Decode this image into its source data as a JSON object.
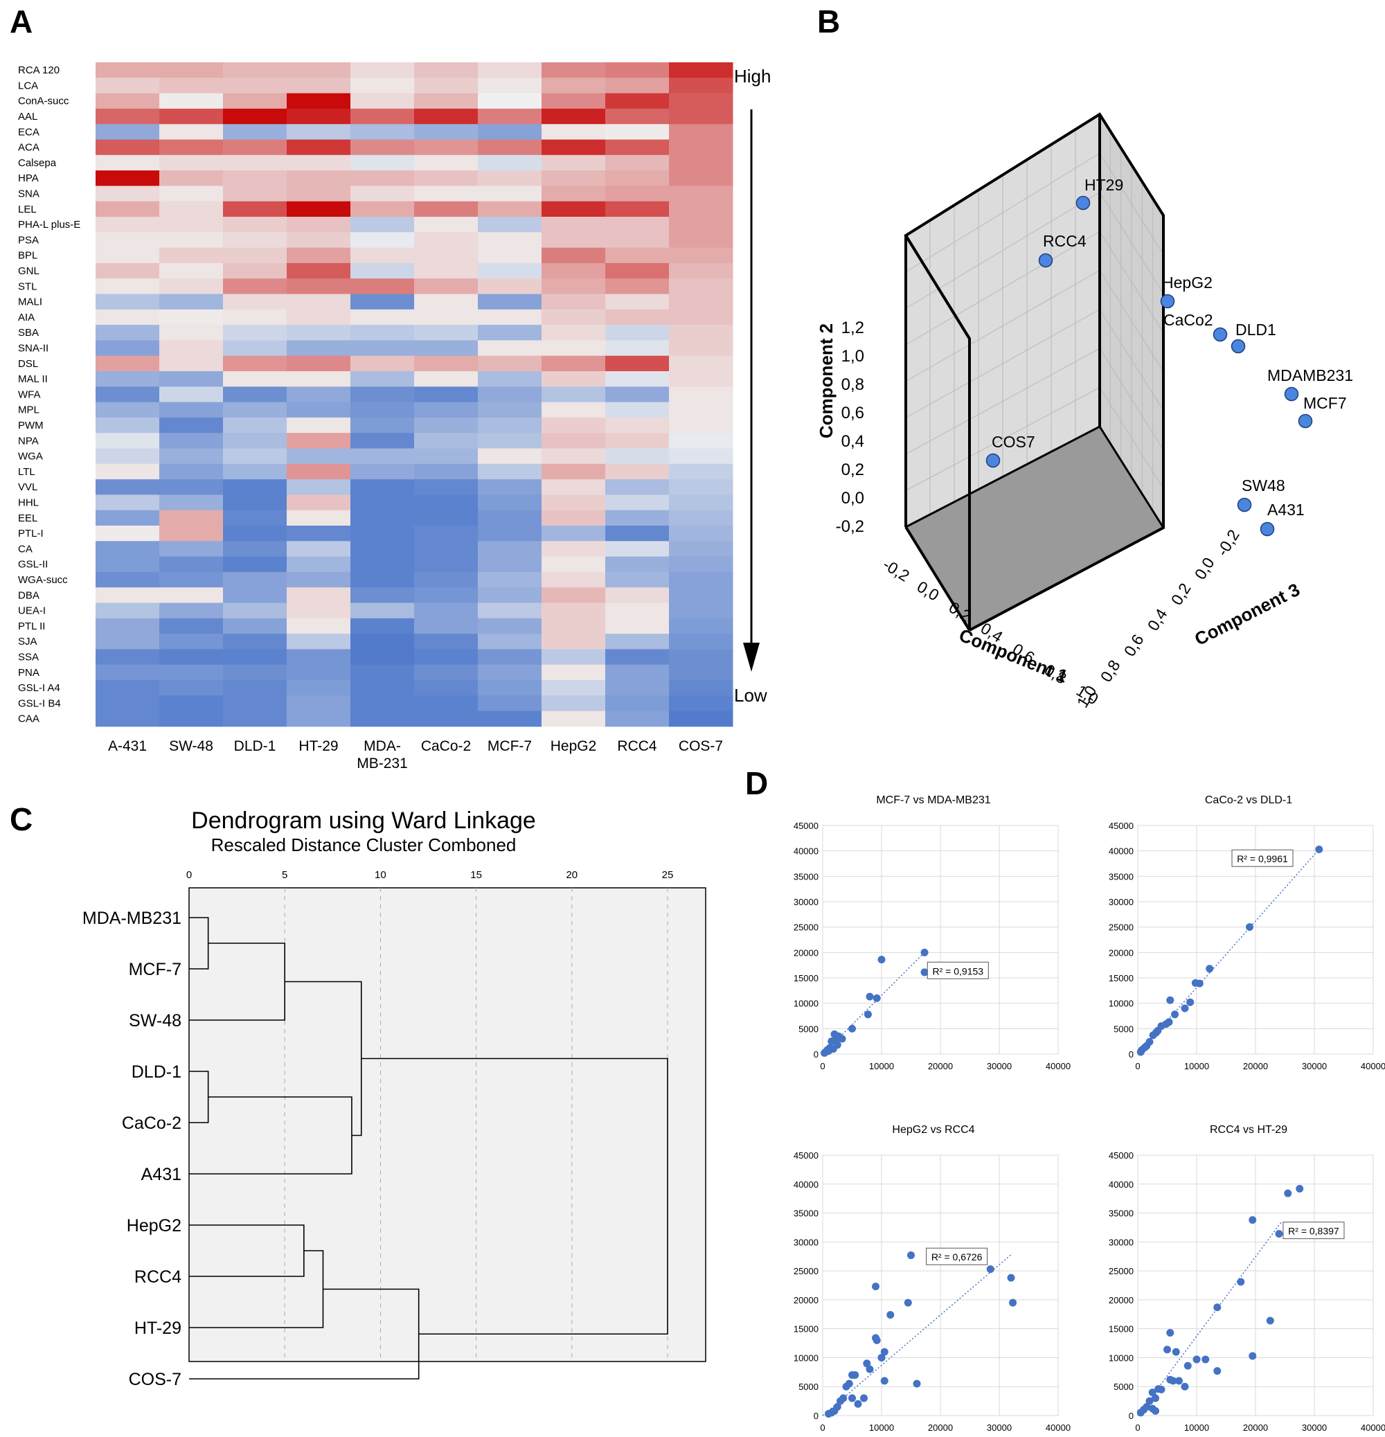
{
  "panels": {
    "a": "A",
    "b": "B",
    "c": "C",
    "d": "D"
  },
  "heatmap": {
    "high_label": "High",
    "low_label": "Low",
    "columns": [
      "A-431",
      "SW-48",
      "DLD-1",
      "HT-29",
      "MDA-MB-231",
      "CaCo-2",
      "MCF-7",
      "HepG2",
      "RCC4",
      "COS-7"
    ],
    "rows": [
      "RCA 120",
      "LCA",
      "ConA-succ",
      "AAL",
      "ECA",
      "ACA",
      "Calsepa",
      "HPA",
      "SNA",
      "LEL",
      "PHA-L plus-E",
      "PSA",
      "BPL",
      "GNL",
      "STL",
      "MALI",
      "AIA",
      "SBA",
      "SNA-II",
      "DSL",
      "MAL II",
      "WFA",
      "MPL",
      "PWM",
      "NPA",
      "WGA",
      "LTL",
      "VVL",
      "HHL",
      "EEL",
      "PTL-I",
      "CA",
      "GSL-II",
      "WGA-succ",
      "DBA",
      "UEA-I",
      "PTL II",
      "SJA",
      "SSA",
      "PNA",
      "GSL-I A4",
      "GSL-I B4",
      "CAA"
    ],
    "values": [
      [
        0.3,
        0.3,
        0.25,
        0.25,
        0.1,
        0.2,
        0.1,
        0.45,
        0.5,
        0.85
      ],
      [
        0.15,
        0.2,
        0.2,
        0.2,
        0.05,
        0.15,
        0.05,
        0.3,
        0.35,
        0.7
      ],
      [
        0.3,
        0.02,
        0.3,
        1.0,
        0.1,
        0.25,
        0.0,
        0.45,
        0.8,
        0.65
      ],
      [
        0.6,
        0.7,
        1.0,
        0.9,
        0.6,
        0.85,
        0.5,
        0.9,
        0.6,
        0.65
      ],
      [
        -0.55,
        0.05,
        -0.5,
        -0.3,
        -0.4,
        -0.5,
        -0.6,
        0.05,
        0.02,
        0.45
      ],
      [
        0.65,
        0.55,
        0.5,
        0.8,
        0.45,
        0.4,
        0.5,
        0.85,
        0.65,
        0.45
      ],
      [
        0.05,
        0.1,
        0.1,
        0.1,
        -0.1,
        0.05,
        -0.15,
        0.15,
        0.25,
        0.45
      ],
      [
        1.0,
        0.25,
        0.2,
        0.25,
        0.25,
        0.2,
        0.15,
        0.25,
        0.3,
        0.45
      ],
      [
        0.1,
        0.05,
        0.2,
        0.25,
        0.1,
        0.05,
        0.05,
        0.3,
        0.35,
        0.35
      ],
      [
        0.3,
        0.1,
        0.7,
        1.0,
        0.3,
        0.5,
        0.3,
        0.85,
        0.7,
        0.35
      ],
      [
        0.1,
        0.1,
        0.15,
        0.2,
        -0.3,
        0.05,
        -0.3,
        0.2,
        0.2,
        0.35
      ],
      [
        0.05,
        0.05,
        0.1,
        0.15,
        -0.05,
        0.1,
        0.05,
        0.2,
        0.2,
        0.35
      ],
      [
        0.05,
        0.15,
        0.15,
        0.35,
        0.1,
        0.1,
        0.05,
        0.5,
        0.3,
        0.3
      ],
      [
        0.2,
        0.05,
        0.2,
        0.65,
        -0.2,
        0.1,
        -0.15,
        0.35,
        0.55,
        0.25
      ],
      [
        0.05,
        0.1,
        0.45,
        0.5,
        0.5,
        0.3,
        0.15,
        0.3,
        0.4,
        0.2
      ],
      [
        -0.35,
        -0.45,
        0.1,
        0.1,
        -0.75,
        0.05,
        -0.6,
        0.2,
        0.1,
        0.2
      ],
      [
        0.05,
        0.02,
        0.05,
        0.1,
        0.05,
        0.05,
        0.05,
        0.15,
        0.2,
        0.2
      ],
      [
        -0.45,
        0.05,
        -0.2,
        -0.25,
        -0.3,
        -0.25,
        -0.45,
        0.1,
        -0.2,
        0.15
      ],
      [
        -0.6,
        0.1,
        -0.3,
        -0.5,
        -0.5,
        -0.5,
        0.05,
        0.05,
        -0.1,
        0.15
      ],
      [
        0.35,
        0.1,
        0.4,
        0.45,
        0.2,
        0.3,
        0.25,
        0.4,
        0.7,
        0.1
      ],
      [
        -0.5,
        -0.55,
        0.05,
        0.05,
        -0.4,
        0.05,
        -0.4,
        0.15,
        -0.1,
        0.1
      ],
      [
        -0.75,
        -0.2,
        -0.75,
        -0.55,
        -0.75,
        -0.8,
        -0.55,
        -0.35,
        -0.55,
        0.05
      ],
      [
        -0.5,
        -0.6,
        -0.5,
        -0.6,
        -0.7,
        -0.6,
        -0.5,
        0.05,
        -0.15,
        0.05
      ],
      [
        -0.35,
        -0.8,
        -0.35,
        0.05,
        -0.65,
        -0.5,
        -0.4,
        0.15,
        0.1,
        0.05
      ],
      [
        -0.1,
        -0.6,
        -0.4,
        0.35,
        -0.8,
        -0.4,
        -0.35,
        0.2,
        0.15,
        -0.05
      ],
      [
        -0.2,
        -0.5,
        -0.3,
        -0.45,
        -0.45,
        -0.45,
        0.05,
        0.1,
        -0.15,
        -0.1
      ],
      [
        0.05,
        -0.6,
        -0.45,
        0.4,
        -0.55,
        -0.6,
        -0.3,
        0.3,
        0.15,
        -0.25
      ],
      [
        -0.75,
        -0.75,
        -0.85,
        -0.35,
        -0.85,
        -0.8,
        -0.6,
        0.1,
        -0.4,
        -0.3
      ],
      [
        -0.3,
        -0.5,
        -0.85,
        0.2,
        -0.85,
        -0.85,
        -0.65,
        0.15,
        -0.2,
        -0.35
      ],
      [
        -0.6,
        0.3,
        -0.8,
        0.05,
        -0.85,
        -0.85,
        -0.7,
        0.2,
        -0.5,
        -0.4
      ],
      [
        0.02,
        0.3,
        -0.85,
        -0.8,
        -0.85,
        -0.8,
        -0.7,
        -0.45,
        -0.8,
        -0.45
      ],
      [
        -0.65,
        -0.55,
        -0.75,
        -0.3,
        -0.85,
        -0.8,
        -0.55,
        0.1,
        -0.15,
        -0.5
      ],
      [
        -0.65,
        -0.75,
        -0.85,
        -0.45,
        -0.85,
        -0.8,
        -0.55,
        0.05,
        -0.5,
        -0.55
      ],
      [
        -0.75,
        -0.7,
        -0.6,
        -0.55,
        -0.85,
        -0.75,
        -0.45,
        0.1,
        -0.45,
        -0.6
      ],
      [
        0.05,
        0.05,
        -0.6,
        0.1,
        -0.75,
        -0.7,
        -0.5,
        0.25,
        0.1,
        -0.6
      ],
      [
        -0.35,
        -0.55,
        -0.4,
        0.1,
        -0.4,
        -0.6,
        -0.3,
        0.15,
        0.05,
        -0.6
      ],
      [
        -0.55,
        -0.8,
        -0.6,
        0.05,
        -0.85,
        -0.6,
        -0.55,
        0.15,
        0.05,
        -0.65
      ],
      [
        -0.55,
        -0.7,
        -0.8,
        -0.3,
        -0.9,
        -0.8,
        -0.45,
        0.15,
        -0.4,
        -0.7
      ],
      [
        -0.8,
        -0.85,
        -0.85,
        -0.7,
        -0.9,
        -0.85,
        -0.7,
        -0.3,
        -0.8,
        -0.75
      ],
      [
        -0.7,
        -0.7,
        -0.75,
        -0.7,
        -0.85,
        -0.75,
        -0.6,
        0.05,
        -0.6,
        -0.75
      ],
      [
        -0.8,
        -0.75,
        -0.8,
        -0.65,
        -0.85,
        -0.8,
        -0.65,
        -0.2,
        -0.6,
        -0.8
      ],
      [
        -0.8,
        -0.85,
        -0.8,
        -0.6,
        -0.85,
        -0.85,
        -0.7,
        -0.3,
        -0.65,
        -0.85
      ],
      [
        -0.8,
        -0.85,
        -0.8,
        -0.6,
        -0.85,
        -0.85,
        -0.85,
        0.05,
        -0.6,
        -0.9
      ]
    ]
  },
  "pca3d": {
    "xlabel": "Component 1",
    "ylabel": "Component 2",
    "zlabel": "Component 3",
    "x_ticks": [
      "-0,2",
      "0,0",
      "0,2",
      "0,4",
      "0,6",
      "0,8",
      "1,0"
    ],
    "y_ticks": [
      "-0,2",
      "0,0",
      "0,2",
      "0,4",
      "0,6",
      "0,8",
      "1,0",
      "1,2"
    ],
    "z_ticks": [
      "-0,2",
      "0,0",
      "0,2",
      "0,4",
      "0,6",
      "0,8",
      "1,0"
    ],
    "points": [
      {
        "name": "HT29"
      },
      {
        "name": "RCC4"
      },
      {
        "name": "HepG2"
      },
      {
        "name": "CaCo2"
      },
      {
        "name": "DLD1"
      },
      {
        "name": "MDAMB231"
      },
      {
        "name": "MCF7"
      },
      {
        "name": "COS7"
      },
      {
        "name": "SW48"
      },
      {
        "name": "A431"
      }
    ]
  },
  "dendrogram": {
    "title": "Dendrogram using Ward Linkage",
    "subtitle": "Rescaled Distance  Cluster Combоned",
    "ticks": [
      "0",
      "5",
      "10",
      "15",
      "20",
      "25"
    ],
    "leaves": [
      "MDA-MB231",
      "MCF-7",
      "SW-48",
      "DLD-1",
      "CaCo-2",
      "A431",
      "HepG2",
      "RCC4",
      "HT-29",
      "COS-7"
    ],
    "merges": [
      {
        "a": 0,
        "b": 1,
        "h": 1
      },
      {
        "a": 3,
        "b": 4,
        "h": 1
      },
      {
        "a": 10,
        "b": 2,
        "h": 5
      },
      {
        "a": 11,
        "b": 5,
        "h": 8.5
      },
      {
        "a": 12,
        "b": 13,
        "h": 9
      },
      {
        "a": 6,
        "b": 7,
        "h": 6
      },
      {
        "a": 15,
        "b": 8,
        "h": 7
      },
      {
        "a": 16,
        "b": 9,
        "h": 12
      },
      {
        "a": 14,
        "b": 17,
        "h": 25
      }
    ]
  },
  "chart_data": [
    {
      "type": "scatter",
      "title": "MCF-7 vs MDA-MB231",
      "r2": "R² = 0,9153",
      "xlim": [
        0,
        40000
      ],
      "ylim": [
        0,
        45000
      ],
      "x_ticks": [
        "0",
        "10000",
        "20000",
        "30000",
        "40000"
      ],
      "y_ticks": [
        "0",
        "5000",
        "10000",
        "15000",
        "20000",
        "25000",
        "30000",
        "35000",
        "40000",
        "45000"
      ],
      "points": [
        [
          17300,
          20000
        ],
        [
          10000,
          18600
        ],
        [
          17300,
          16100
        ],
        [
          8000,
          11300
        ],
        [
          9200,
          11000
        ],
        [
          7700,
          7800
        ],
        [
          5000,
          5000
        ],
        [
          2700,
          3500
        ],
        [
          3300,
          3000
        ],
        [
          2000,
          3900
        ],
        [
          1500,
          2500
        ],
        [
          2500,
          1800
        ],
        [
          1200,
          1200
        ],
        [
          800,
          800
        ],
        [
          500,
          400
        ],
        [
          300,
          200
        ],
        [
          1000,
          600
        ],
        [
          1800,
          1000
        ],
        [
          2200,
          2600
        ]
      ],
      "trend": [
        [
          0,
          0
        ],
        [
          17300,
          20000
        ]
      ]
    },
    {
      "type": "scatter",
      "title": "CaCo-2 vs DLD-1",
      "r2": "R² = 0,9961",
      "xlim": [
        0,
        40000
      ],
      "ylim": [
        0,
        45000
      ],
      "x_ticks": [
        "0",
        "10000",
        "20000",
        "30000",
        "40000"
      ],
      "y_ticks": [
        "0",
        "5000",
        "10000",
        "15000",
        "20000",
        "25000",
        "30000",
        "35000",
        "40000",
        "45000"
      ],
      "points": [
        [
          30800,
          40300
        ],
        [
          19000,
          25000
        ],
        [
          12200,
          16800
        ],
        [
          10500,
          13900
        ],
        [
          9800,
          14000
        ],
        [
          8900,
          10200
        ],
        [
          8000,
          9000
        ],
        [
          6300,
          7800
        ],
        [
          5500,
          10600
        ],
        [
          5300,
          6300
        ],
        [
          4800,
          5900
        ],
        [
          4000,
          5500
        ],
        [
          3400,
          4600
        ],
        [
          3100,
          4200
        ],
        [
          2600,
          3700
        ],
        [
          2000,
          2400
        ],
        [
          1500,
          1600
        ],
        [
          1200,
          1300
        ],
        [
          700,
          800
        ],
        [
          500,
          400
        ]
      ],
      "trend": [
        [
          0,
          0
        ],
        [
          30800,
          40300
        ]
      ]
    },
    {
      "type": "scatter",
      "title": "HepG2 vs RCC4",
      "r2": "R² = 0,6726",
      "xlim": [
        0,
        40000
      ],
      "ylim": [
        0,
        45000
      ],
      "x_ticks": [
        "0",
        "10000",
        "20000",
        "30000",
        "40000"
      ],
      "y_ticks": [
        "0",
        "5000",
        "10000",
        "15000",
        "20000",
        "25000",
        "30000",
        "35000",
        "40000",
        "45000"
      ],
      "points": [
        [
          15000,
          27700
        ],
        [
          9000,
          22300
        ],
        [
          14500,
          19500
        ],
        [
          11500,
          17400
        ],
        [
          9200,
          13000
        ],
        [
          9000,
          13400
        ],
        [
          10500,
          11000
        ],
        [
          10000,
          10000
        ],
        [
          28500,
          25300
        ],
        [
          32000,
          23800
        ],
        [
          32300,
          19500
        ],
        [
          16000,
          5500
        ],
        [
          10500,
          6000
        ],
        [
          8000,
          8000
        ],
        [
          7500,
          9000
        ],
        [
          5500,
          7000
        ],
        [
          5000,
          7000
        ],
        [
          4500,
          5500
        ],
        [
          4000,
          5000
        ],
        [
          3500,
          3000
        ],
        [
          3000,
          2500
        ],
        [
          2500,
          1500
        ],
        [
          2000,
          800
        ],
        [
          1500,
          500
        ],
        [
          1000,
          300
        ],
        [
          5000,
          3000
        ],
        [
          6000,
          2000
        ],
        [
          7000,
          3000
        ]
      ],
      "trend": [
        [
          0,
          0
        ],
        [
          32000,
          27800
        ]
      ]
    },
    {
      "type": "scatter",
      "title": "RCC4 vs HT-29",
      "r2": "R² = 0,8397",
      "xlim": [
        0,
        40000
      ],
      "ylim": [
        0,
        45000
      ],
      "x_ticks": [
        "0",
        "10000",
        "20000",
        "30000",
        "40000"
      ],
      "y_ticks": [
        "0",
        "5000",
        "10000",
        "15000",
        "20000",
        "25000",
        "30000",
        "35000",
        "40000",
        "45000"
      ],
      "points": [
        [
          27500,
          39200
        ],
        [
          25500,
          38400
        ],
        [
          19500,
          33800
        ],
        [
          24000,
          31400
        ],
        [
          17500,
          23100
        ],
        [
          13500,
          18700
        ],
        [
          22500,
          16400
        ],
        [
          19500,
          10300
        ],
        [
          11500,
          9700
        ],
        [
          10000,
          9700
        ],
        [
          13500,
          7700
        ],
        [
          8500,
          8600
        ],
        [
          5500,
          14300
        ],
        [
          6500,
          11000
        ],
        [
          5000,
          11400
        ],
        [
          6000,
          6000
        ],
        [
          7000,
          6000
        ],
        [
          5500,
          6200
        ],
        [
          3500,
          4600
        ],
        [
          2500,
          4000
        ],
        [
          4000,
          4500
        ],
        [
          3000,
          3000
        ],
        [
          2000,
          2500
        ],
        [
          1500,
          1500
        ],
        [
          1000,
          1000
        ],
        [
          500,
          500
        ],
        [
          8000,
          5000
        ],
        [
          2500,
          1200
        ],
        [
          3000,
          800
        ]
      ],
      "trend": [
        [
          0,
          0
        ],
        [
          24500,
          33600
        ]
      ]
    }
  ]
}
